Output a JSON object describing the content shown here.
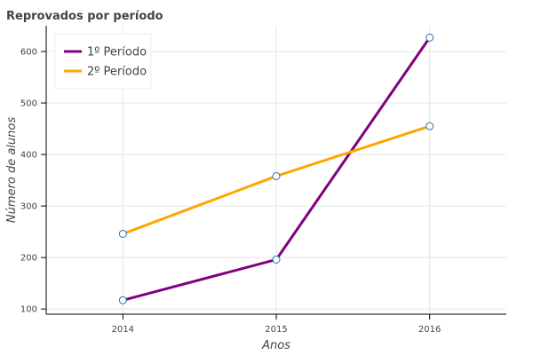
{
  "chart_data": {
    "type": "line",
    "title": "Reprovados por período",
    "xlabel": "Anos",
    "ylabel": "Número de alunos",
    "x": [
      2014,
      2015,
      2016
    ],
    "xlim": [
      2013.5,
      2016.5
    ],
    "ylim": [
      90,
      650
    ],
    "xticks": [
      2014,
      2015,
      2016
    ],
    "yticks": [
      100,
      200,
      300,
      400,
      500,
      600
    ],
    "grid": true,
    "legend_position": "top-left",
    "series": [
      {
        "name": "1º Período",
        "color": "#800080",
        "values": [
          117,
          196,
          627
        ]
      },
      {
        "name": "2º Período",
        "color": "#FFA500",
        "values": [
          246,
          358,
          455
        ]
      }
    ],
    "marker": {
      "fill": "#ffffff",
      "stroke": "#1f77b4"
    }
  }
}
